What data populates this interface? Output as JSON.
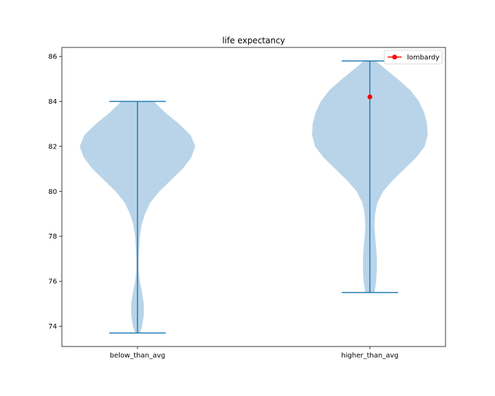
{
  "chart_data": {
    "type": "violin",
    "title": "life expectancy",
    "xlabel": "",
    "ylabel": "",
    "ylim": [
      73.1,
      86.4
    ],
    "yticks": [
      74,
      76,
      78,
      80,
      82,
      84,
      86
    ],
    "categories": [
      "below_than_avg",
      "higher_than_avg"
    ],
    "violins": [
      {
        "category": "below_than_avg",
        "min": 73.7,
        "max": 84.0,
        "density": [
          [
            73.7,
            0.04
          ],
          [
            74.0,
            0.08
          ],
          [
            74.5,
            0.11
          ],
          [
            75.0,
            0.11
          ],
          [
            75.5,
            0.08
          ],
          [
            76.0,
            0.04
          ],
          [
            76.5,
            0.02
          ],
          [
            77.0,
            0.02
          ],
          [
            77.5,
            0.03
          ],
          [
            78.0,
            0.04
          ],
          [
            78.5,
            0.07
          ],
          [
            79.0,
            0.13
          ],
          [
            79.5,
            0.22
          ],
          [
            80.0,
            0.38
          ],
          [
            80.5,
            0.58
          ],
          [
            81.0,
            0.78
          ],
          [
            81.5,
            0.93
          ],
          [
            82.0,
            1.0
          ],
          [
            82.5,
            0.92
          ],
          [
            83.0,
            0.72
          ],
          [
            83.5,
            0.48
          ],
          [
            84.0,
            0.28
          ]
        ],
        "color": "#b9d4e8"
      },
      {
        "category": "higher_than_avg",
        "min": 75.5,
        "max": 85.8,
        "density": [
          [
            75.5,
            0.08
          ],
          [
            76.0,
            0.11
          ],
          [
            76.5,
            0.12
          ],
          [
            77.0,
            0.12
          ],
          [
            77.5,
            0.11
          ],
          [
            78.0,
            0.09
          ],
          [
            78.5,
            0.08
          ],
          [
            79.0,
            0.09
          ],
          [
            79.5,
            0.13
          ],
          [
            80.0,
            0.23
          ],
          [
            80.5,
            0.4
          ],
          [
            81.0,
            0.6
          ],
          [
            81.5,
            0.8
          ],
          [
            82.0,
            0.95
          ],
          [
            82.5,
            1.0
          ],
          [
            83.0,
            0.99
          ],
          [
            83.5,
            0.94
          ],
          [
            84.0,
            0.85
          ],
          [
            84.5,
            0.7
          ],
          [
            85.0,
            0.48
          ],
          [
            85.5,
            0.24
          ],
          [
            85.8,
            0.1
          ]
        ],
        "color": "#b9d4e8"
      }
    ],
    "points": [
      {
        "series": "lombardy",
        "category": "higher_than_avg",
        "y": 84.2,
        "color": "#ff0000"
      }
    ],
    "legend": {
      "position": "top-right",
      "entries": [
        {
          "label": "lombardy",
          "color": "#ff0000",
          "marker": "o"
        }
      ]
    },
    "line_color": "#1f77b4",
    "grid": false
  }
}
